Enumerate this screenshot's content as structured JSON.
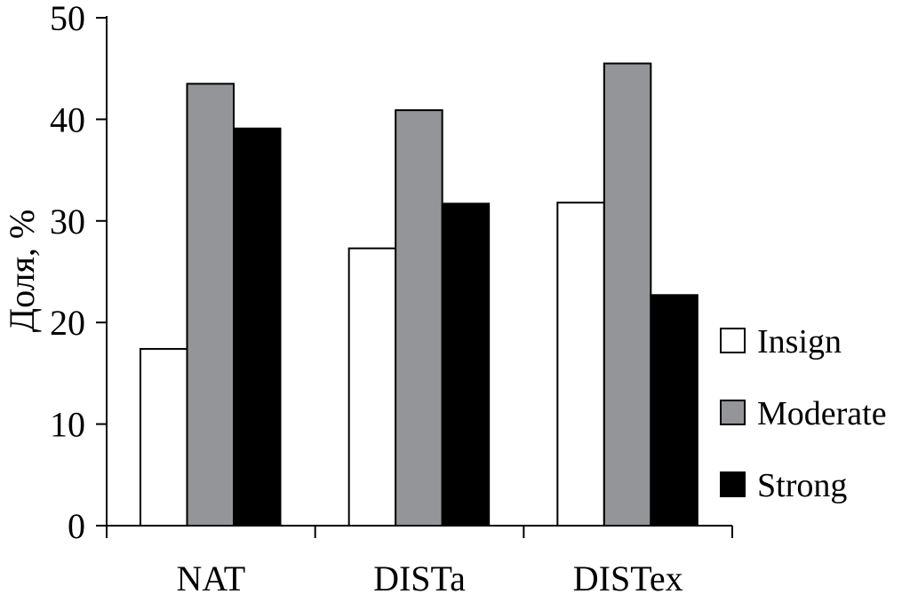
{
  "chart_data": {
    "type": "bar",
    "title": "",
    "xlabel": "",
    "ylabel": "Доля, %",
    "ylim": [
      0,
      50
    ],
    "yticks": [
      0,
      10,
      20,
      30,
      40,
      50
    ],
    "categories": [
      "NAT",
      "DISTa",
      "DISTex"
    ],
    "series": [
      {
        "name": "Insign",
        "color": "#ffffff",
        "values": [
          17.4,
          27.3,
          31.8
        ]
      },
      {
        "name": "Moderate",
        "color": "#939598",
        "values": [
          43.5,
          40.9,
          45.5
        ]
      },
      {
        "name": "Strong",
        "color": "#000000",
        "values": [
          39.1,
          31.7,
          22.7
        ]
      }
    ],
    "legend_position": "right",
    "grid": false
  }
}
